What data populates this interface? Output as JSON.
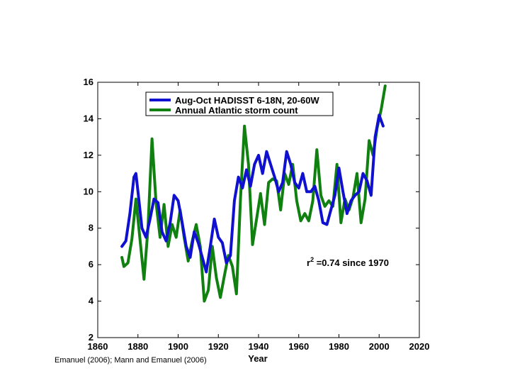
{
  "citation": "Emanuel (2006); Mann and Emanuel (2006)",
  "annotation": {
    "base": "r",
    "sup": "2",
    "rest": " =0.74  since 1970"
  },
  "colors": {
    "sst": "#1010d0",
    "storm": "#108010",
    "axis": "#000000"
  },
  "chart_data": {
    "type": "line",
    "title": "",
    "xlabel": "Year",
    "ylabel": "",
    "xlim": [
      1860,
      2020
    ],
    "ylim": [
      2,
      16
    ],
    "xticks": [
      "1860",
      "1880",
      "1900",
      "1920",
      "1940",
      "1960",
      "1980",
      "2000",
      "2020"
    ],
    "yticks": [
      "2",
      "4",
      "6",
      "8",
      "10",
      "12",
      "14",
      "16"
    ],
    "legend_position": "top",
    "grid": false,
    "series": [
      {
        "name": "Aug-Oct HADISST 6-18N, 20-60W",
        "color": "#1010d0",
        "x": [
          1872,
          1874,
          1876,
          1878,
          1879,
          1880,
          1882,
          1884,
          1886,
          1888,
          1890,
          1892,
          1894,
          1896,
          1898,
          1900,
          1902,
          1904,
          1906,
          1908,
          1910,
          1912,
          1914,
          1916,
          1918,
          1920,
          1922,
          1924,
          1926,
          1928,
          1930,
          1932,
          1934,
          1936,
          1938,
          1940,
          1942,
          1944,
          1946,
          1948,
          1950,
          1952,
          1954,
          1956,
          1958,
          1960,
          1962,
          1964,
          1966,
          1968,
          1970,
          1972,
          1974,
          1976,
          1978,
          1980,
          1982,
          1984,
          1986,
          1988,
          1990,
          1992,
          1994,
          1996,
          1998,
          2000,
          2002
        ],
        "y": [
          7.0,
          7.3,
          8.8,
          10.8,
          11.0,
          10.0,
          8.0,
          7.5,
          8.5,
          9.6,
          9.4,
          7.8,
          7.3,
          8.3,
          9.8,
          9.5,
          8.3,
          7.0,
          6.4,
          7.8,
          7.2,
          6.4,
          5.6,
          7.0,
          8.5,
          7.5,
          7.2,
          6.1,
          6.5,
          9.5,
          10.8,
          10.2,
          11.2,
          10.3,
          11.5,
          12.0,
          11.0,
          12.2,
          11.5,
          10.8,
          10.0,
          10.5,
          12.2,
          11.5,
          10.5,
          10.2,
          11.0,
          10.0,
          10.0,
          10.3,
          9.5,
          8.3,
          8.2,
          9.0,
          9.8,
          11.3,
          10.0,
          8.8,
          9.5,
          9.8,
          10.0,
          11.0,
          10.6,
          9.8,
          13.0,
          14.2,
          13.6
        ]
      },
      {
        "name": "Annual Atlantic storm count",
        "color": "#108010",
        "x": [
          1872,
          1873,
          1875,
          1877,
          1879,
          1881,
          1883,
          1885,
          1887,
          1889,
          1891,
          1893,
          1895,
          1897,
          1899,
          1901,
          1903,
          1905,
          1907,
          1909,
          1911,
          1913,
          1915,
          1917,
          1919,
          1921,
          1923,
          1925,
          1927,
          1929,
          1931,
          1933,
          1935,
          1937,
          1939,
          1941,
          1943,
          1945,
          1947,
          1949,
          1951,
          1953,
          1955,
          1957,
          1959,
          1961,
          1963,
          1965,
          1967,
          1969,
          1971,
          1973,
          1975,
          1977,
          1979,
          1981,
          1983,
          1985,
          1987,
          1989,
          1991,
          1993,
          1995,
          1997,
          1999,
          2001,
          2003
        ],
        "y": [
          6.4,
          5.9,
          6.1,
          7.4,
          9.6,
          7.4,
          5.2,
          8.0,
          12.9,
          9.4,
          7.5,
          9.3,
          7.0,
          8.2,
          7.5,
          9.0,
          7.5,
          6.2,
          7.3,
          8.2,
          7.0,
          4.0,
          4.6,
          7.0,
          5.3,
          4.2,
          5.4,
          6.5,
          5.9,
          4.4,
          9.6,
          13.6,
          11.5,
          7.1,
          8.5,
          9.9,
          8.2,
          10.5,
          10.7,
          10.6,
          9.0,
          11.0,
          10.4,
          11.5,
          9.5,
          8.4,
          8.8,
          8.4,
          9.5,
          12.3,
          9.8,
          9.2,
          9.5,
          9.2,
          11.5,
          8.3,
          9.6,
          9.0,
          9.7,
          11.0,
          8.3,
          9.6,
          12.8,
          12.0,
          13.5,
          14.5,
          15.8
        ]
      }
    ]
  }
}
